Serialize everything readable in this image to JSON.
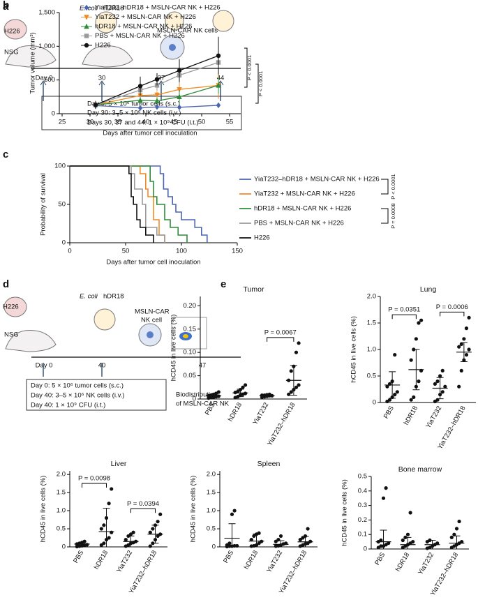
{
  "panel_a": {
    "label": "a",
    "tumor": "H226",
    "mouse": "NSG",
    "bacteria": [
      "E. coli",
      "hDR18"
    ],
    "nk": "MSLN-CAR NK cells",
    "days": [
      "Day 0",
      "30",
      "37",
      "44"
    ],
    "notes": [
      "Day 0: 5 × 10⁶ tumor cells (s.c.)",
      "Day 30: 3–5 × 10⁶ NK cells (i.v.)",
      "Days 30, 37 and 44: 1 × 10⁹ CFU (i.t.)"
    ]
  },
  "panel_d": {
    "label": "d",
    "tumor": "H226",
    "mouse": "NSG",
    "bacteria": [
      "E. coli",
      "hDR18"
    ],
    "nk": [
      "MSLN-CAR",
      "NK cell"
    ],
    "days": [
      "Day 0",
      "40",
      "47"
    ],
    "notes": [
      "Day 0: 5 × 10⁶ tumor cells (s.c.)",
      "Day 40: 3–5 × 10⁶ NK cells (i.v.)",
      "Day 40: 1 × 10⁹ CFU (i.t.)"
    ],
    "readout": [
      "Biodistribution",
      "of MSLN-CAR NK"
    ]
  },
  "chart_data": [
    {
      "panel": "b",
      "type": "line",
      "ylabel": "Tumor volume (mm³)",
      "xlabel": "Days after tumor cell inoculation",
      "x": [
        31,
        39,
        42,
        46,
        53
      ],
      "xlim": [
        24.5,
        57
      ],
      "xticks": [
        25,
        30,
        35,
        40,
        45,
        50,
        55
      ],
      "ylim": [
        0,
        1500
      ],
      "yticks": [
        0,
        500,
        {
          "value": 1000,
          "label": "1,000"
        },
        {
          "value": 1500,
          "label": "1,500"
        }
      ],
      "legend": "upper left",
      "annotations": [
        "P < 0.0001",
        "P < 0.0001"
      ],
      "series": [
        {
          "name": "YiaT232–hDR18 + MSLN-CAR NK + H226",
          "color": "#4a64b0",
          "marker": "diamond",
          "values": [
            120,
            85,
            100,
            95,
            125
          ],
          "errors": [
            20,
            20,
            20,
            30,
            40
          ]
        },
        {
          "name": "YiaT232 + MSLN-CAR NK + H226",
          "color": "#f08a24",
          "marker": "triangle-down",
          "values": [
            130,
            270,
            280,
            360,
            420
          ],
          "errors": [
            40,
            60,
            50,
            100,
            200
          ]
        },
        {
          "name": "hDR18 + MSLN-CAR NK + H226",
          "color": "#2f8b3a",
          "marker": "triangle-up",
          "values": [
            130,
            200,
            190,
            250,
            420
          ],
          "errors": [
            40,
            60,
            50,
            100,
            120
          ]
        },
        {
          "name": "PBS + MSLN-CAR NK + H226",
          "color": "#9a9a9a",
          "marker": "square",
          "values": [
            130,
            350,
            420,
            570,
            760
          ],
          "errors": [
            50,
            120,
            80,
            120,
            150
          ]
        },
        {
          "name": "H226",
          "color": "#111111",
          "marker": "circle",
          "values": [
            130,
            410,
            510,
            640,
            860
          ],
          "errors": [
            60,
            140,
            90,
            170,
            280
          ]
        }
      ]
    },
    {
      "panel": "c",
      "type": "step",
      "ylabel": "Probability of survival",
      "xlabel": "Days after tumor cell inoculation",
      "xlim": [
        0,
        150
      ],
      "xticks": [
        0,
        50,
        100,
        150
      ],
      "ylim": [
        0,
        100
      ],
      "yticks": [
        0,
        50,
        100
      ],
      "legend": "right",
      "series": [
        {
          "name": "YiaT232–hDR18 + MSLN-CAR NK + H226",
          "color": "#4a64b0",
          "x": [
            0,
            81,
            84,
            88,
            92,
            95,
            100,
            112,
            118,
            123
          ],
          "values": [
            100,
            90,
            70,
            60,
            50,
            40,
            30,
            20,
            10,
            0
          ]
        },
        {
          "name": "YiaT232 + MSLN-CAR NK + H226",
          "color": "#f08a24",
          "x": [
            0,
            63,
            68,
            70,
            75,
            80,
            85
          ],
          "values": [
            100,
            90,
            70,
            60,
            30,
            10,
            0
          ]
        },
        {
          "name": "hDR18 + MSLN-CAR NK + H226",
          "color": "#2f8b3a",
          "x": [
            0,
            72,
            75,
            78,
            85,
            90,
            97,
            105
          ],
          "values": [
            100,
            80,
            60,
            50,
            30,
            20,
            10,
            0
          ]
        },
        {
          "name": "PBS + MSLN-CAR NK + H226",
          "color": "#9a9a9a",
          "x": [
            0,
            55,
            58,
            65,
            68,
            78,
            85
          ],
          "values": [
            100,
            90,
            70,
            50,
            20,
            10,
            0
          ]
        },
        {
          "name": "H226",
          "color": "#111111",
          "x": [
            0,
            53,
            55,
            57,
            60,
            63,
            68,
            75
          ],
          "values": [
            100,
            90,
            60,
            50,
            30,
            20,
            10,
            0
          ]
        }
      ],
      "comparisons": [
        {
          "series": [
            0,
            1
          ],
          "label": "P < 0.0001"
        },
        {
          "series": [
            2,
            3
          ],
          "label": "P = 0.0008"
        }
      ]
    },
    {
      "panel": "e",
      "type": "strip",
      "title": "Tumor",
      "ylabel": "hCD45 in live cells (%)",
      "categories": [
        "PBS",
        "hDR18",
        "YiaT232",
        "YiaT232–hDR18"
      ],
      "ylim": [
        0,
        0.22
      ],
      "yticks": [
        0,
        0.05,
        {
          "value": 0.1,
          "label": "0.10"
        },
        0.15,
        {
          "value": 0.2,
          "label": "0.20"
        }
      ],
      "points": [
        [
          0.002,
          0.003,
          0.004,
          0.005,
          0.006,
          0.007,
          0.008,
          0.01,
          0.012,
          0.015
        ],
        [
          0.003,
          0.005,
          0.008,
          0.01,
          0.012,
          0.014,
          0.016,
          0.02,
          0.025,
          0.03
        ],
        [
          0.004,
          0.005,
          0.006,
          0.007,
          0.007,
          0.008,
          0.008,
          0.009,
          0.01
        ],
        [
          0.01,
          0.015,
          0.02,
          0.025,
          0.03,
          0.04,
          0.06,
          0.07,
          0.1,
          0.12
        ]
      ],
      "means": [
        0.007,
        0.013,
        0.007,
        0.04
      ],
      "errors": [
        0.004,
        0.008,
        0.002,
        0.032
      ],
      "comparisons": [
        {
          "groups": [
            2,
            3
          ],
          "label": "P = 0.0067"
        }
      ]
    },
    {
      "type": "strip",
      "title": "Lung",
      "ylabel": "hCD45 in live cells (%)",
      "categories": [
        "PBS",
        "hDR18",
        "YiaT232",
        "YiaT232–hDR18"
      ],
      "ylim": [
        0,
        2
      ],
      "yticks": [
        0,
        0.5,
        {
          "value": 1,
          "label": "1.0"
        },
        1.5,
        {
          "value": 2,
          "label": "2.0"
        }
      ],
      "points": [
        [
          0.02,
          0.05,
          0.1,
          0.15,
          0.2,
          0.3,
          0.35,
          0.4,
          0.9
        ],
        [
          0.05,
          0.1,
          0.3,
          0.4,
          0.6,
          0.8,
          1.0,
          1.2,
          1.5,
          1.55
        ],
        [
          0.02,
          0.05,
          0.15,
          0.2,
          0.3,
          0.35,
          0.4,
          0.5,
          0.6
        ],
        [
          0.3,
          0.6,
          0.8,
          0.9,
          1.0,
          1.05,
          1.1,
          1.2,
          1.4,
          1.6
        ]
      ],
      "means": [
        0.33,
        0.62,
        0.27,
        0.95
      ],
      "errors": [
        0.25,
        0.38,
        0.2,
        0.18
      ],
      "comparisons": [
        {
          "groups": [
            0,
            1
          ],
          "label": "P = 0.0351"
        },
        {
          "groups": [
            2,
            3
          ],
          "label": "P = 0.0006"
        }
      ]
    },
    {
      "type": "strip",
      "title": "Liver",
      "ylabel": "hCD45 in live cells (%)",
      "categories": [
        "PBS",
        "hDR18",
        "YiaT232",
        "YiaT232–hDR18"
      ],
      "ylim": [
        0,
        2.1
      ],
      "yticks": [
        0,
        0.5,
        {
          "value": 1,
          "label": "1.0"
        },
        1.5,
        {
          "value": 2,
          "label": "2.0"
        }
      ],
      "points": [
        [
          0.01,
          0.02,
          0.03,
          0.05,
          0.06,
          0.08,
          0.1,
          0.12,
          0.15
        ],
        [
          0.05,
          0.1,
          0.2,
          0.25,
          0.4,
          0.5,
          0.6,
          0.8,
          1.2,
          1.6
        ],
        [
          0.02,
          0.05,
          0.1,
          0.12,
          0.15,
          0.2,
          0.3,
          0.35,
          0.4
        ],
        [
          0.02,
          0.1,
          0.2,
          0.3,
          0.35,
          0.4,
          0.5,
          0.6,
          0.7,
          0.9
        ]
      ],
      "means": [
        0.08,
        0.42,
        0.15,
        0.35
      ],
      "errors": [
        0.05,
        0.65,
        0.15,
        0.25
      ],
      "comparisons": [
        {
          "groups": [
            0,
            1
          ],
          "label": "P = 0.0098"
        },
        {
          "groups": [
            2,
            3
          ],
          "label": "P = 0.0394"
        }
      ]
    },
    {
      "type": "strip",
      "title": "Spleen",
      "ylabel": "hCD45 in live cells (%)",
      "categories": [
        "PBS",
        "hDR18",
        "YiaT232",
        "YiaT232–hDR18"
      ],
      "ylim": [
        0,
        2.1
      ],
      "yticks": [
        0,
        0.5,
        {
          "value": 1,
          "label": "1.0"
        },
        1.5,
        {
          "value": 2,
          "label": "2.0"
        }
      ],
      "points": [
        [
          0.01,
          0.02,
          0.02,
          0.03,
          0.03,
          0.05,
          0.1,
          0.9,
          1.0
        ],
        [
          0.02,
          0.03,
          0.05,
          0.1,
          0.15,
          0.2,
          0.3,
          0.35,
          0.38
        ],
        [
          0.02,
          0.03,
          0.05,
          0.08,
          0.1,
          0.15,
          0.2,
          0.3
        ],
        [
          0.02,
          0.05,
          0.08,
          0.1,
          0.15,
          0.2,
          0.25,
          0.3,
          0.5
        ]
      ],
      "means": [
        0.24,
        0.16,
        0.07,
        0.14
      ],
      "errors": [
        0.4,
        0.2,
        0.1,
        0.15
      ]
    },
    {
      "type": "strip",
      "title": "Bone marrow",
      "ylabel": "hCD45 in live cells (%)",
      "categories": [
        "PBS",
        "hDR18",
        "YiaT232",
        "YiaT232–hDR18"
      ],
      "ylim": [
        0,
        0.5
      ],
      "yticks": [
        0,
        0.1,
        0.2,
        0.3,
        0.4,
        0.5
      ],
      "points": [
        [
          0.01,
          0.02,
          0.02,
          0.03,
          0.04,
          0.05,
          0.06,
          0.35,
          0.42
        ],
        [
          0.01,
          0.02,
          0.03,
          0.04,
          0.05,
          0.06,
          0.08,
          0.1,
          0.25
        ],
        [
          0.005,
          0.01,
          0.02,
          0.03,
          0.04,
          0.05,
          0.06
        ],
        [
          0.01,
          0.02,
          0.03,
          0.04,
          0.05,
          0.08,
          0.1,
          0.14,
          0.19
        ]
      ],
      "means": [
        0.05,
        0.03,
        0.03,
        0.04
      ],
      "errors": [
        0.08,
        0.05,
        0.03,
        0.05
      ]
    }
  ]
}
